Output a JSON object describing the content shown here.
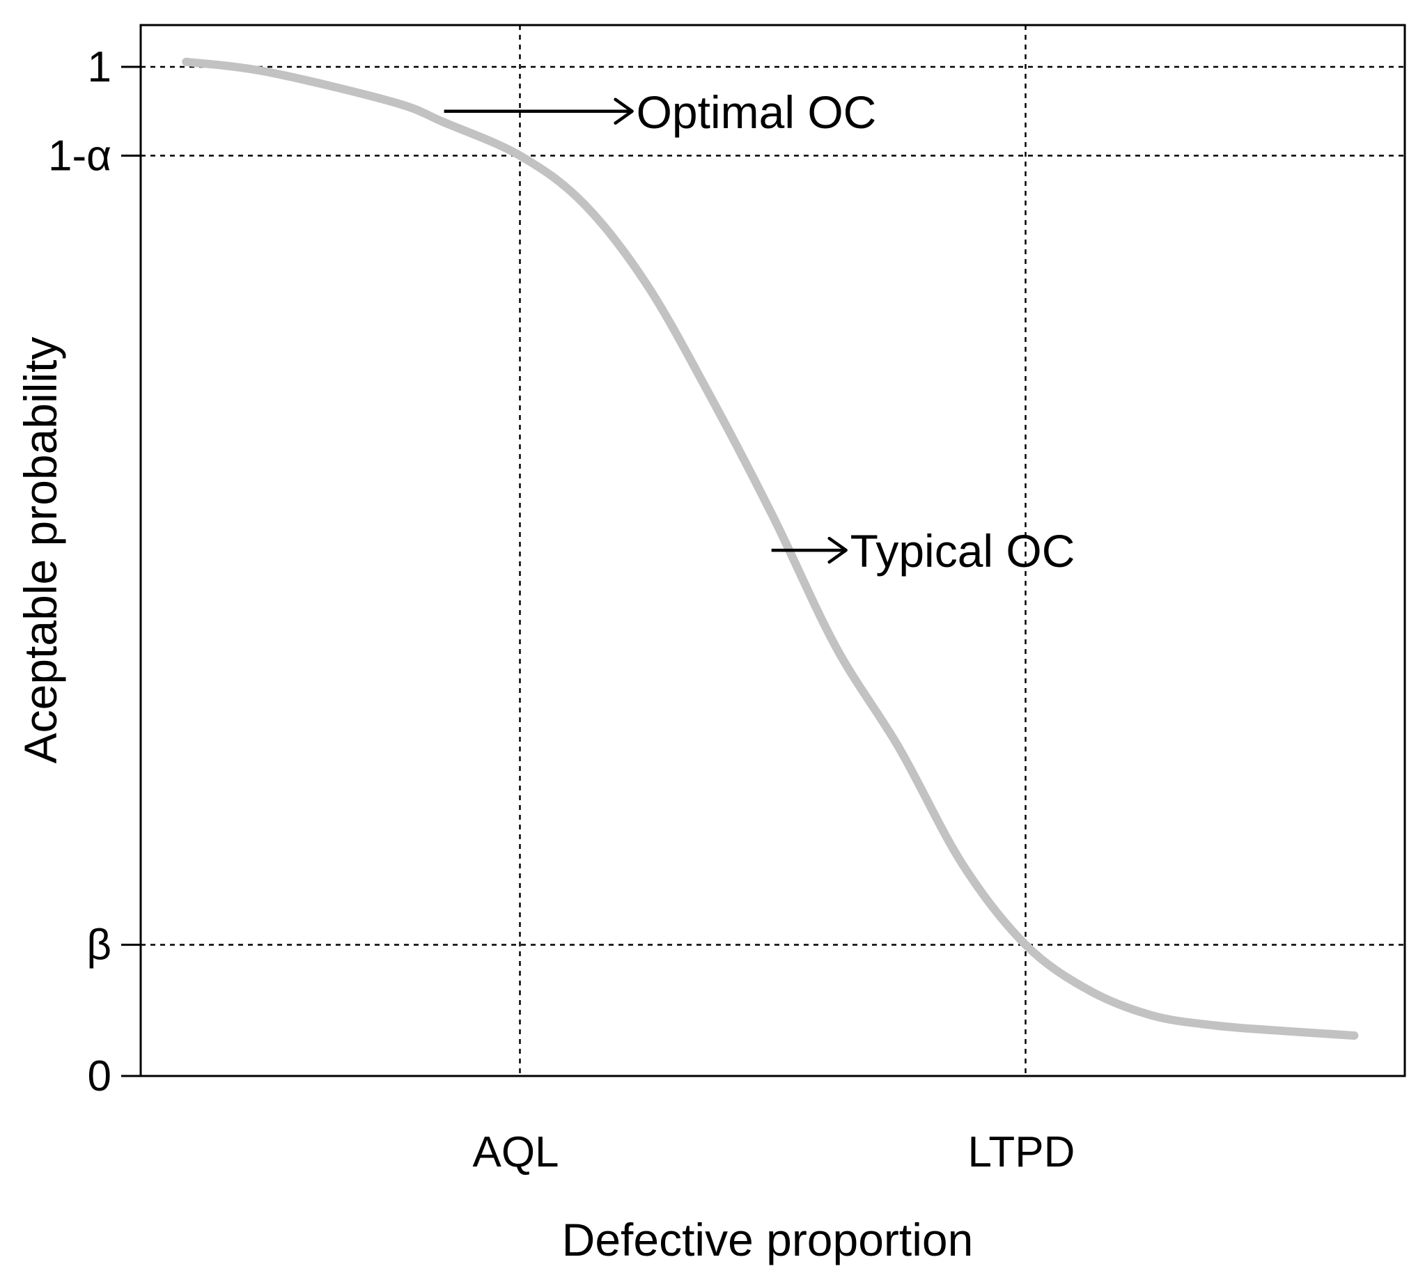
{
  "chart_data": {
    "type": "line",
    "title": "",
    "xlabel": "Defective proportion",
    "ylabel": "Aceptable probability",
    "xlim": [
      0,
      1
    ],
    "ylim": [
      0,
      1
    ],
    "grid": false,
    "x_ticks": [
      {
        "value": 0.3,
        "label": "AQL"
      },
      {
        "value": 0.7,
        "label": "LTPD"
      }
    ],
    "y_ticks": [
      {
        "value": 0,
        "label": "0"
      },
      {
        "value": 0.13,
        "label": "β"
      },
      {
        "value": 0.912,
        "label": "1-α"
      },
      {
        "value": 1,
        "label": "1"
      }
    ],
    "reference_lines": {
      "horizontal": [
        1,
        0.912,
        0.13
      ],
      "vertical": [
        0.3,
        0.7
      ]
    },
    "series": [
      {
        "color": "#c2c2c2",
        "x": [
          0.036,
          0.1,
          0.2,
          0.24,
          0.3,
          0.35,
          0.4,
          0.45,
          0.5,
          0.55,
          0.6,
          0.65,
          0.7,
          0.75,
          0.8,
          0.85,
          0.9,
          0.96
        ],
        "y": [
          1.005,
          0.995,
          0.965,
          0.945,
          0.912,
          0.865,
          0.785,
          0.675,
          0.555,
          0.425,
          0.325,
          0.21,
          0.13,
          0.085,
          0.06,
          0.05,
          0.045,
          0.04
        ]
      }
    ],
    "annotations": [
      {
        "text": "Optimal OC",
        "x": 0.24,
        "y": 0.956
      },
      {
        "text": "Typical OC",
        "x": 0.499,
        "y": 0.521
      }
    ]
  }
}
